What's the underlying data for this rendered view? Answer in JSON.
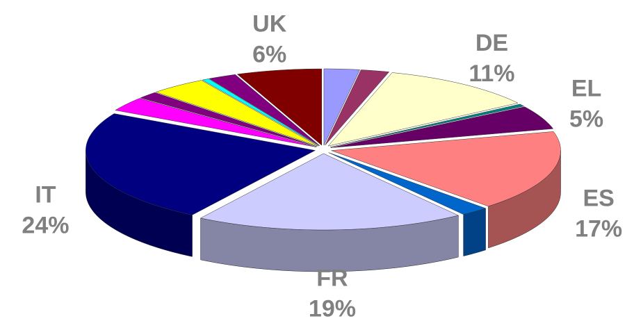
{
  "chart_data": {
    "type": "pie3d",
    "categories": [
      null,
      null,
      "DE",
      null,
      "EL",
      "ES",
      null,
      "FR",
      "IT",
      null,
      null,
      null,
      null,
      null,
      "UK"
    ],
    "values": [
      2.5,
      2,
      11,
      0.5,
      5,
      17,
      2,
      19,
      24,
      3,
      1.5,
      4,
      0.5,
      2,
      6
    ],
    "value_labels": [
      null,
      null,
      "11%",
      null,
      "5%",
      "17%",
      null,
      "19%",
      "24%",
      null,
      null,
      null,
      null,
      null,
      "6%"
    ],
    "colors": [
      "#9999ff",
      "#993366",
      "#ffffcc",
      "#008080",
      "#660066",
      "#ff8080",
      "#0066cc",
      "#ccccff",
      "#000080",
      "#ff00ff",
      "#800080",
      "#ffff00",
      "#00ffff",
      "#800080",
      "#800000"
    ]
  }
}
